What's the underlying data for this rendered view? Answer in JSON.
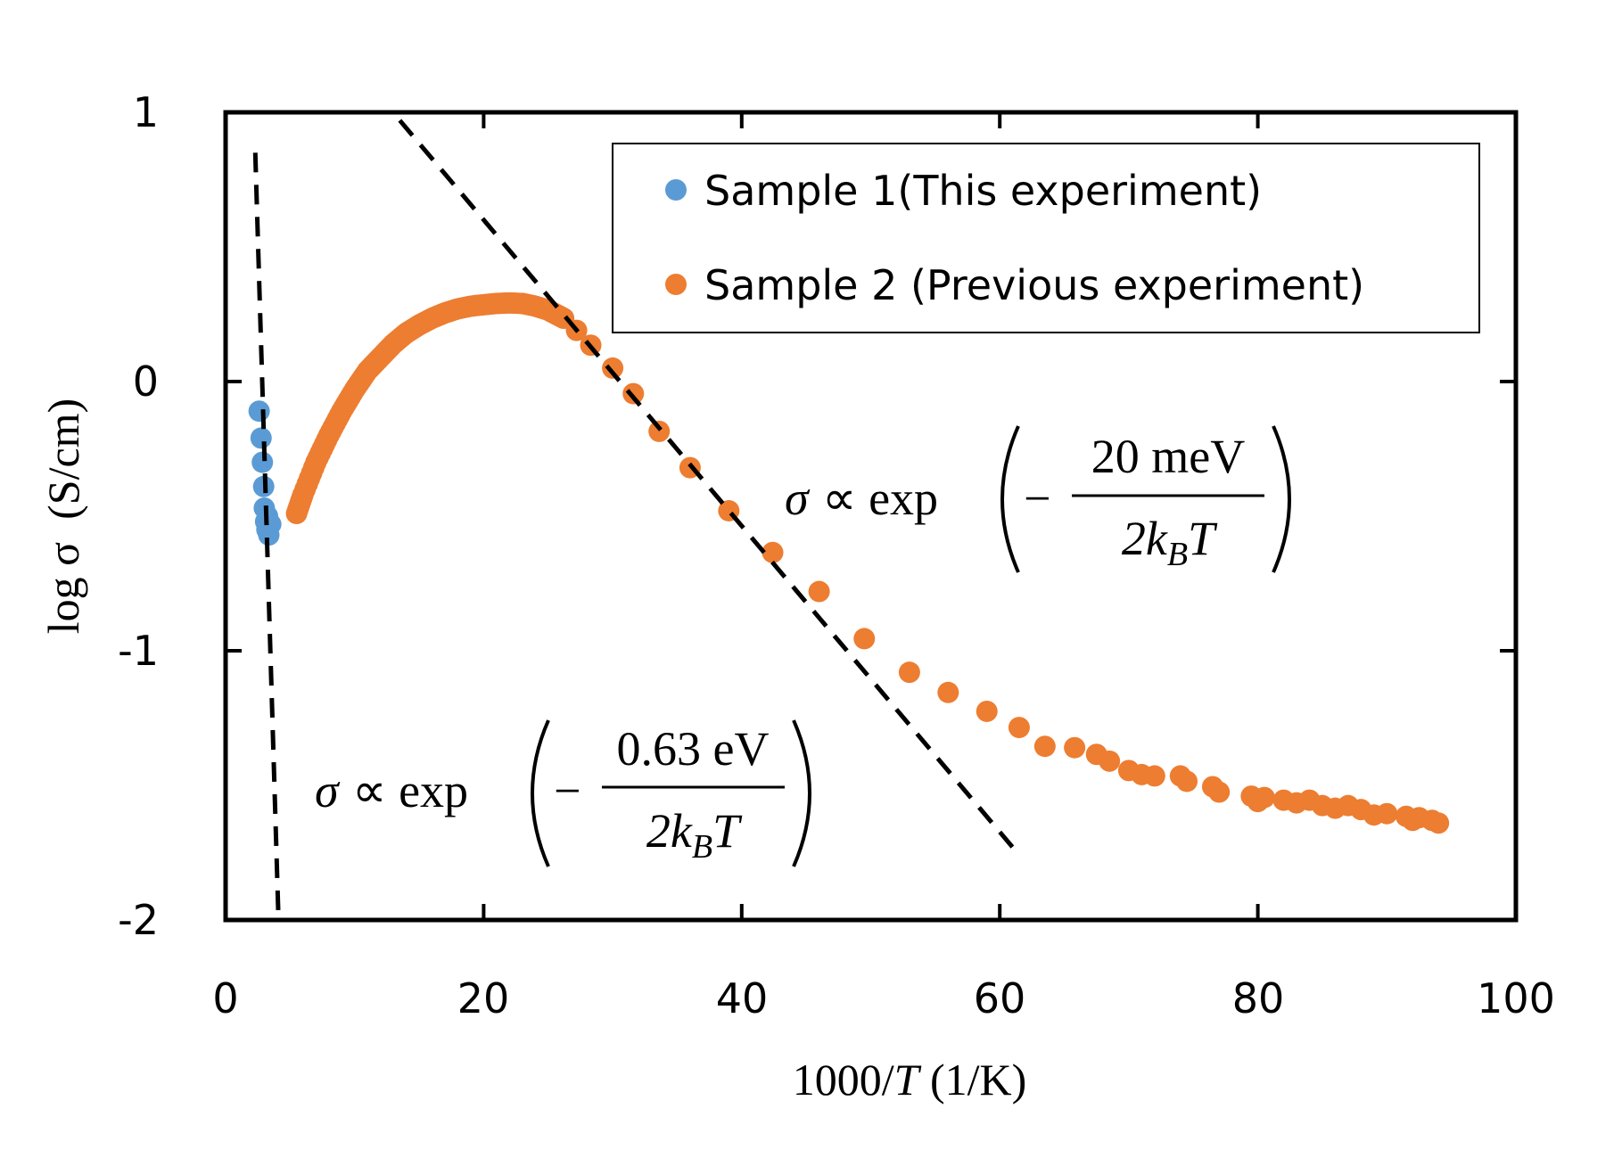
{
  "chart_data": {
    "type": "scatter",
    "xlabel": "1000/T (1/K)",
    "xlabel_parts": {
      "prefix": "1000/",
      "var": "T",
      "suffix": " (1/K)"
    },
    "ylabel": "log σ  (S/cm)",
    "xlim": [
      0,
      100
    ],
    "ylim": [
      -2,
      1
    ],
    "x_ticks": [
      "0",
      "20",
      "40",
      "60",
      "80",
      "100"
    ],
    "y_ticks": [
      "1",
      "0",
      "-1",
      "-2"
    ],
    "legend": {
      "position": "top-right"
    },
    "colors": {
      "sample1": "#5B9BD5",
      "sample2": "#ED7D31",
      "fit": "#000000"
    },
    "series": [
      {
        "name": "Sample 1(This experiment)",
        "color": "#5B9BD5",
        "points": [
          [
            2.6,
            -0.11
          ],
          [
            2.75,
            -0.21
          ],
          [
            2.85,
            -0.3
          ],
          [
            2.95,
            -0.39
          ],
          [
            3.0,
            -0.47
          ],
          [
            3.1,
            -0.52
          ],
          [
            3.2,
            -0.55
          ],
          [
            3.35,
            -0.57
          ],
          [
            3.5,
            -0.53
          ],
          [
            3.25,
            -0.5
          ]
        ]
      },
      {
        "name": "Sample 2 (Previous experiment)",
        "color": "#ED7D31",
        "points": [
          [
            5.5,
            -0.49
          ],
          [
            6.0,
            -0.42
          ],
          [
            7.0,
            -0.3
          ],
          [
            8.0,
            -0.2
          ],
          [
            9.0,
            -0.11
          ],
          [
            10.0,
            -0.03
          ],
          [
            11.0,
            0.04
          ],
          [
            12.0,
            0.09
          ],
          [
            13.0,
            0.14
          ],
          [
            14.0,
            0.18
          ],
          [
            15.0,
            0.21
          ],
          [
            16.0,
            0.235
          ],
          [
            17.0,
            0.255
          ],
          [
            18.0,
            0.27
          ],
          [
            19.0,
            0.28
          ],
          [
            20.0,
            0.285
          ],
          [
            21.0,
            0.29
          ],
          [
            22.0,
            0.292
          ],
          [
            23.0,
            0.29
          ],
          [
            24.0,
            0.28
          ],
          [
            25.0,
            0.265
          ],
          [
            26.2,
            0.235
          ],
          [
            27.2,
            0.19
          ],
          [
            28.3,
            0.135
          ],
          [
            30.0,
            0.05
          ],
          [
            31.6,
            -0.045
          ],
          [
            33.6,
            -0.185
          ],
          [
            36.0,
            -0.32
          ],
          [
            39.0,
            -0.48
          ],
          [
            42.4,
            -0.635
          ],
          [
            46.0,
            -0.78
          ],
          [
            49.5,
            -0.955
          ],
          [
            53.0,
            -1.08
          ],
          [
            56.0,
            -1.155
          ],
          [
            59.0,
            -1.225
          ],
          [
            61.5,
            -1.285
          ],
          [
            63.5,
            -1.355
          ],
          [
            65.8,
            -1.36
          ],
          [
            67.5,
            -1.385
          ],
          [
            68.5,
            -1.41
          ],
          [
            70.0,
            -1.445
          ],
          [
            71.0,
            -1.46
          ],
          [
            72.0,
            -1.465
          ],
          [
            74.0,
            -1.465
          ],
          [
            74.5,
            -1.485
          ],
          [
            76.5,
            -1.505
          ],
          [
            77.0,
            -1.525
          ],
          [
            79.5,
            -1.54
          ],
          [
            80.0,
            -1.56
          ],
          [
            80.5,
            -1.545
          ],
          [
            82.0,
            -1.555
          ],
          [
            83.0,
            -1.565
          ],
          [
            84.0,
            -1.555
          ],
          [
            85.0,
            -1.575
          ],
          [
            86.0,
            -1.585
          ],
          [
            87.0,
            -1.575
          ],
          [
            88.0,
            -1.59
          ],
          [
            89.0,
            -1.61
          ],
          [
            90.0,
            -1.605
          ],
          [
            91.5,
            -1.615
          ],
          [
            92.0,
            -1.63
          ],
          [
            92.5,
            -1.62
          ],
          [
            93.5,
            -1.63
          ],
          [
            94.0,
            -1.64
          ]
        ]
      }
    ],
    "fit_lines": [
      {
        "label": "0.63 eV",
        "points": [
          [
            2.3,
            0.85
          ],
          [
            4.1,
            -2.0
          ]
        ]
      },
      {
        "label": "20 meV",
        "points": [
          [
            13.5,
            0.97
          ],
          [
            61.0,
            -1.73
          ]
        ]
      }
    ],
    "annotations": [
      {
        "sigma": "σ",
        "prop": "∝ exp",
        "minus": "−",
        "numerator": "20 meV",
        "den_2k": "2k",
        "den_sub": "B",
        "den_T": "T"
      },
      {
        "sigma": "σ",
        "prop": "∝ exp",
        "minus": "−",
        "numerator": "0.63 eV",
        "den_2k": "2k",
        "den_sub": "B",
        "den_T": "T"
      }
    ]
  }
}
